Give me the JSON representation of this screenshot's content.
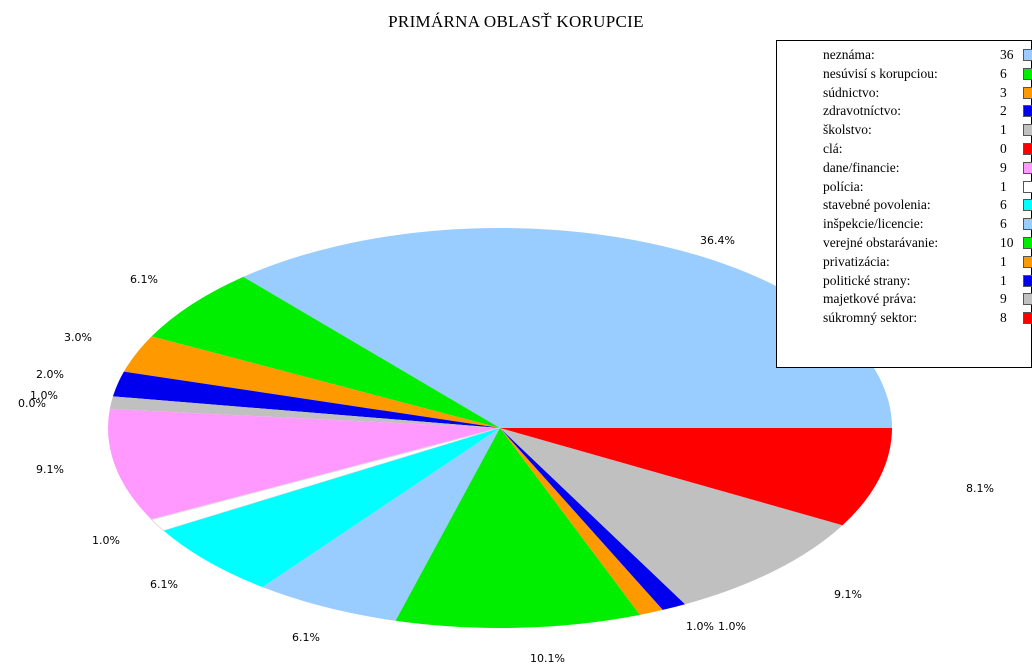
{
  "chart_data": {
    "type": "pie",
    "title": "PRIMÁRNA OBLASŤ KORUPCIE",
    "slices": [
      {
        "label": "neznáma:",
        "value": 36,
        "percent_label": "36.4%",
        "color": "#99ccff"
      },
      {
        "label": "nesúvisí s korupciou:",
        "value": 6,
        "percent_label": "6.1%",
        "color": "#00ee00"
      },
      {
        "label": "súdnictvo:",
        "value": 3,
        "percent_label": "3.0%",
        "color": "#ff9900"
      },
      {
        "label": "zdravotníctvo:",
        "value": 2,
        "percent_label": "2.0%",
        "color": "#0000ee"
      },
      {
        "label": "školstvo:",
        "value": 1,
        "percent_label": "1.0%",
        "color": "#c0c0c0"
      },
      {
        "label": "clá:",
        "value": 0,
        "percent_label": "0.0%",
        "color": "#ff0000"
      },
      {
        "label": "dane/financie:",
        "value": 9,
        "percent_label": "9.1%",
        "color": "#ff99ff"
      },
      {
        "label": "polícia:",
        "value": 1,
        "percent_label": "1.0%",
        "color": "#ffffff"
      },
      {
        "label": "stavebné povolenia:",
        "value": 6,
        "percent_label": "6.1%",
        "color": "#00ffff"
      },
      {
        "label": "inšpekcie/licencie:",
        "value": 6,
        "percent_label": "6.1%",
        "color": "#99ccff"
      },
      {
        "label": "verejné obstarávanie:",
        "value": 10,
        "percent_label": "10.1%",
        "color": "#00ee00"
      },
      {
        "label": "privatizácia:",
        "value": 1,
        "percent_label": "1.0%",
        "color": "#ff9900"
      },
      {
        "label": "politické strany:",
        "value": 1,
        "percent_label": "1.0%",
        "color": "#0000ee"
      },
      {
        "label": "majetkové práva:",
        "value": 9,
        "percent_label": "9.1%",
        "color": "#c0c0c0"
      },
      {
        "label": "súkromný sektor:",
        "value": 8,
        "percent_label": "8.1%",
        "color": "#ff0000"
      }
    ],
    "legend_position": "top-right"
  }
}
